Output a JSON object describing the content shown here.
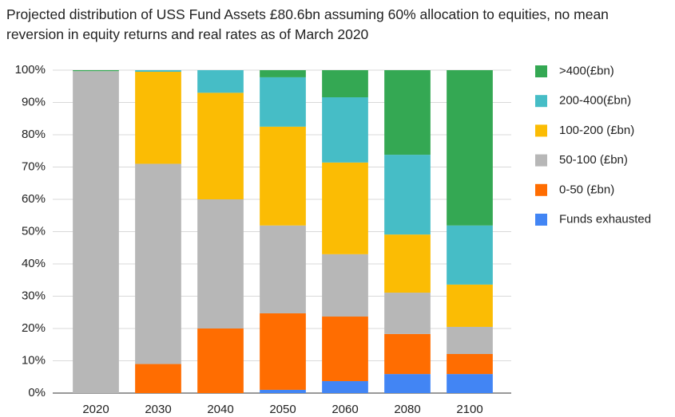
{
  "chart_data": {
    "type": "stacked_bar",
    "title": "Projected distribution of USS Fund Assets £80.6bn assuming 60% allocation to equities, no mean reversion in equity returns and real rates as of March 2020",
    "categories": [
      "2020",
      "2030",
      "2040",
      "2050",
      "2060",
      "2080",
      "2100"
    ],
    "series": [
      {
        "name": "Funds exhausted",
        "color": "#4285f4",
        "values": [
          0,
          0,
          0,
          1,
          3.7,
          5.9,
          5.9
        ]
      },
      {
        "name": "0-50 (£bn)",
        "color": "#ff6d01",
        "values": [
          0,
          9,
          20,
          23.7,
          20,
          12.4,
          6.2
        ]
      },
      {
        "name": "50-100 (£bn)",
        "color": "#b7b7b7",
        "values": [
          99.7,
          62,
          40,
          27.2,
          19.3,
          12.8,
          8.4
        ]
      },
      {
        "name": "100-200 (£bn)",
        "color": "#fbbc04",
        "values": [
          0,
          28.5,
          33,
          30.6,
          28.4,
          18,
          13.1
        ]
      },
      {
        "name": "200-400(£bn)",
        "color": "#46bdc6",
        "values": [
          0,
          0.5,
          7,
          15.3,
          20.2,
          24.7,
          18.3
        ]
      },
      {
        "name": ">400(£bn)",
        "color": "#34a853",
        "values": [
          0.3,
          0,
          0,
          2.2,
          8.4,
          26.2,
          48.1
        ]
      }
    ],
    "ylim": [
      0,
      100
    ],
    "yticks": [
      {
        "value": 0,
        "label": "0%"
      },
      {
        "value": 10,
        "label": "10%"
      },
      {
        "value": 20,
        "label": "20%"
      },
      {
        "value": 30,
        "label": "30%"
      },
      {
        "value": 40,
        "label": "40%"
      },
      {
        "value": 50,
        "label": "50%"
      },
      {
        "value": 60,
        "label": "60%"
      },
      {
        "value": 70,
        "label": "70%"
      },
      {
        "value": 80,
        "label": "80%"
      },
      {
        "value": 90,
        "label": "90%"
      },
      {
        "value": 100,
        "label": "100%"
      }
    ],
    "grid": true,
    "legend": "right"
  }
}
